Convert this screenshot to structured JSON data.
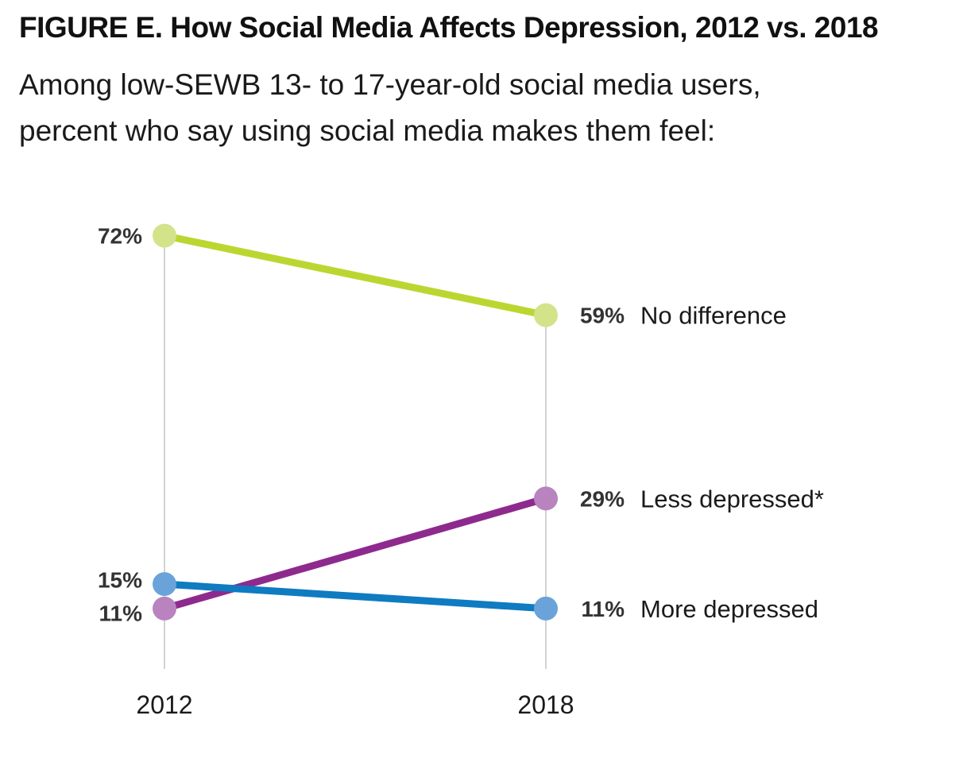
{
  "chart_data": {
    "type": "line",
    "title": "FIGURE E. How Social Media Affects Depression, 2012 vs. 2018",
    "subtitle_lines": [
      "Among low-SEWB 13- to 17-year-old social media users,",
      "percent who say using social media makes them feel:"
    ],
    "categories": [
      "2012",
      "2018"
    ],
    "ylim": [
      0,
      100
    ],
    "grid": false,
    "series": [
      {
        "name": "No difference",
        "values": [
          72,
          59
        ],
        "value_labels": [
          "72%",
          "59%"
        ],
        "line_color": "#bcd631",
        "point_color": "#d3e38a"
      },
      {
        "name": "Less depressed*",
        "values": [
          11,
          29
        ],
        "value_labels": [
          "11%",
          "29%"
        ],
        "line_color": "#8e2a8e",
        "point_color": "#b883bf"
      },
      {
        "name": "More depressed",
        "values": [
          15,
          11
        ],
        "value_labels": [
          "15%",
          "11%"
        ],
        "line_color": "#0f7bc1",
        "point_color": "#6aa3d9"
      }
    ]
  }
}
